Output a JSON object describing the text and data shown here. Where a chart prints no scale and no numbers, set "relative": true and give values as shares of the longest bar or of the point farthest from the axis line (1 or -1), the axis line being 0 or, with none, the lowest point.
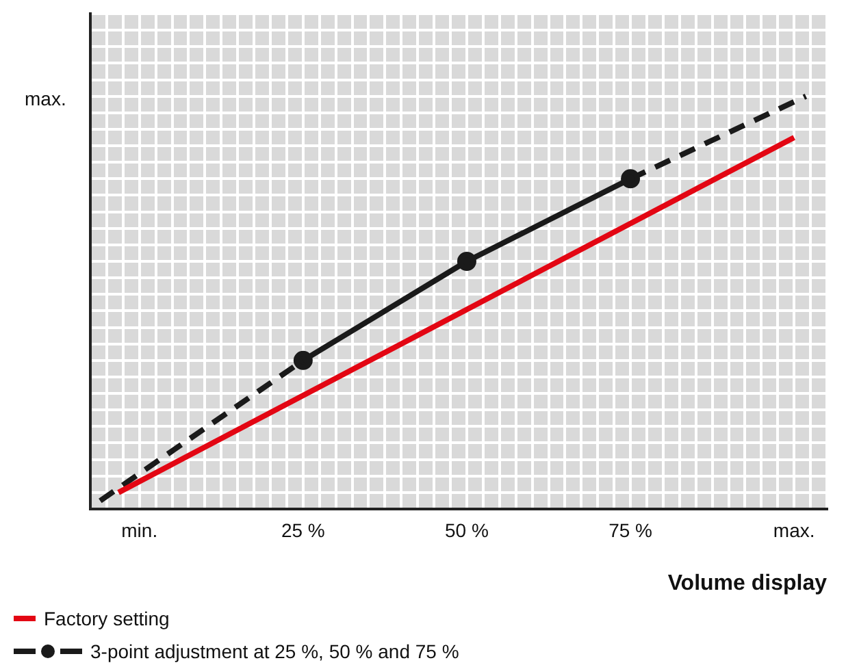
{
  "chart_data": {
    "type": "line",
    "xlabel": "Volume display",
    "xlim": [
      -7.5,
      105
    ],
    "relative": true,
    "annotations": [
      "max."
    ],
    "xticks": [
      {
        "value": -7.5,
        "label": null
      },
      {
        "value": -5,
        "label": null
      },
      {
        "value": -2.5,
        "label": null
      },
      {
        "value": 0,
        "label": "min."
      },
      {
        "value": 2.5,
        "label": null
      },
      {
        "value": 5,
        "label": null
      },
      {
        "value": 7.5,
        "label": null
      },
      {
        "value": 10,
        "label": null
      },
      {
        "value": 12.5,
        "label": null
      },
      {
        "value": 15,
        "label": null
      },
      {
        "value": 17.5,
        "label": null
      },
      {
        "value": 20,
        "label": null
      },
      {
        "value": 22.5,
        "label": null
      },
      {
        "value": 25,
        "label": "25 %"
      },
      {
        "value": 27.5,
        "label": null
      },
      {
        "value": 30,
        "label": null
      },
      {
        "value": 32.5,
        "label": null
      },
      {
        "value": 35,
        "label": null
      },
      {
        "value": 37.5,
        "label": null
      },
      {
        "value": 40,
        "label": null
      },
      {
        "value": 42.5,
        "label": null
      },
      {
        "value": 45,
        "label": null
      },
      {
        "value": 47.5,
        "label": null
      },
      {
        "value": 50,
        "label": "50 %"
      },
      {
        "value": 52.5,
        "label": null
      },
      {
        "value": 55,
        "label": null
      },
      {
        "value": 57.5,
        "label": null
      },
      {
        "value": 60,
        "label": null
      },
      {
        "value": 62.5,
        "label": null
      },
      {
        "value": 65,
        "label": null
      },
      {
        "value": 67.5,
        "label": null
      },
      {
        "value": 70,
        "label": null
      },
      {
        "value": 72.5,
        "label": null
      },
      {
        "value": 75,
        "label": "75 %"
      },
      {
        "value": 77.5,
        "label": null
      },
      {
        "value": 80,
        "label": null
      },
      {
        "value": 82.5,
        "label": null
      },
      {
        "value": 85,
        "label": null
      },
      {
        "value": 87.5,
        "label": null
      },
      {
        "value": 90,
        "label": null
      },
      {
        "value": 92.5,
        "label": null
      },
      {
        "value": 95,
        "label": null
      },
      {
        "value": 97.5,
        "label": null
      },
      {
        "value": 100,
        "label": "max."
      },
      {
        "value": 102.5,
        "label": null
      },
      {
        "value": 105,
        "label": null
      }
    ],
    "grid": true,
    "legend": "bottom left",
    "series": [
      {
        "name": "Factory setting",
        "color": "#e30613",
        "x": [
          -3.2,
          100
        ],
        "values": [
          0.04,
          0.9
        ],
        "marker": "none",
        "line_style": "solid"
      },
      {
        "color": "#1a1a1a",
        "x": [
          -6,
          25
        ],
        "values": [
          0.02,
          0.36
        ],
        "line_style": "dashed"
      },
      {
        "name": "3-point adjustment at 25 %, 50 % and 75 %",
        "color": "#1a1a1a",
        "x": [
          25,
          50,
          75
        ],
        "values": [
          0.36,
          0.6,
          0.8
        ],
        "marker": "circle",
        "line_style": "solid"
      },
      {
        "color": "#1a1a1a",
        "x": [
          75,
          101.8
        ],
        "values": [
          0.8,
          1
        ],
        "line_style": "dashed"
      }
    ]
  }
}
